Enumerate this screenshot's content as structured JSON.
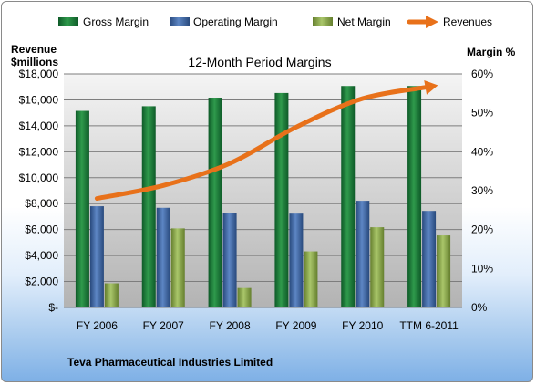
{
  "chart_data": {
    "type": "bar",
    "title": "12-Month Period Margins",
    "company": "Teva Pharmaceutical Industries Limited",
    "left_axis_label_line1": "Revenue",
    "left_axis_label_line2": "$millions",
    "right_axis_label": "Margin %",
    "categories": [
      "FY 2006",
      "FY 2007",
      "FY 2008",
      "FY 2009",
      "FY 2010",
      "TTM 6-2011"
    ],
    "left_ticks": [
      "$-",
      "$2,000",
      "$4,000",
      "$6,000",
      "$8,000",
      "$10,000",
      "$12,000",
      "$14,000",
      "$16,000",
      "$18,000"
    ],
    "right_ticks": [
      "0%",
      "10%",
      "20%",
      "30%",
      "40%",
      "50%",
      "60%"
    ],
    "left_ylim": [
      0,
      18000
    ],
    "right_ylim": [
      0,
      60
    ],
    "series": [
      {
        "name": "Gross Margin",
        "axis": "right",
        "color": "#1a7a3a",
        "values": [
          50.5,
          51.7,
          53.9,
          55.1,
          56.9,
          56.9
        ]
      },
      {
        "name": "Operating Margin",
        "axis": "right",
        "color": "#3f6aa8",
        "values": [
          26.0,
          25.6,
          24.2,
          24.1,
          27.4,
          24.8
        ]
      },
      {
        "name": "Net Margin",
        "axis": "right",
        "color": "#8fb04a",
        "values": [
          6.2,
          20.3,
          5.0,
          14.4,
          20.6,
          18.5
        ]
      },
      {
        "name": "Revenues",
        "axis": "left",
        "type": "line",
        "color": "#e8711a",
        "values": [
          8400,
          9400,
          11100,
          13900,
          16100,
          17000
        ]
      }
    ],
    "legend_position": "top",
    "grid": true
  }
}
